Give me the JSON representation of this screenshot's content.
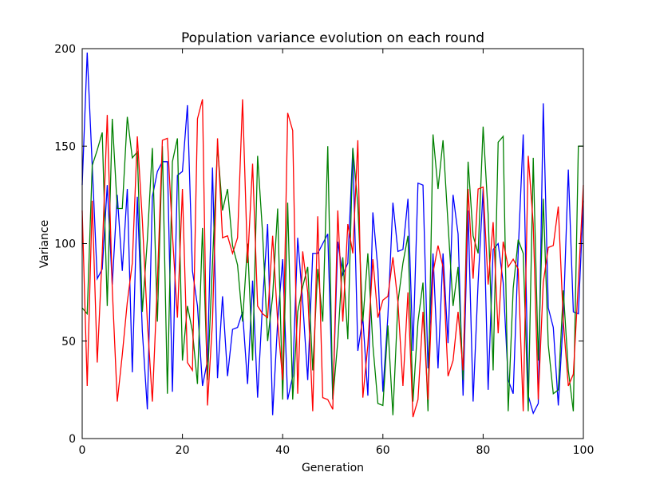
{
  "chart_data": {
    "type": "line",
    "title": "Population variance evolution on each round",
    "xlabel": "Generation",
    "ylabel": "Variance",
    "x": [
      0,
      1,
      2,
      3,
      4,
      5,
      6,
      7,
      8,
      9,
      10,
      11,
      12,
      13,
      14,
      15,
      16,
      17,
      18,
      19,
      20,
      21,
      22,
      23,
      24,
      25,
      26,
      27,
      28,
      29,
      30,
      31,
      32,
      33,
      34,
      35,
      36,
      37,
      38,
      39,
      40,
      41,
      42,
      43,
      44,
      45,
      46,
      47,
      48,
      49,
      50,
      51,
      52,
      53,
      54,
      55,
      56,
      57,
      58,
      59,
      60,
      61,
      62,
      63,
      64,
      65,
      66,
      67,
      68,
      69,
      70,
      71,
      72,
      73,
      74,
      75,
      76,
      77,
      78,
      79,
      80,
      81,
      82,
      83,
      84,
      85,
      86,
      87,
      88,
      89,
      90,
      91,
      92,
      93,
      94,
      95,
      96,
      97,
      98,
      99,
      100
    ],
    "series": [
      {
        "color": "#0000ff",
        "values": [
          130,
          198,
          140,
          82,
          87,
          130,
          79,
          125,
          86,
          128,
          34,
          124,
          55,
          15,
          124,
          137,
          142,
          142,
          24,
          135,
          137,
          171,
          86,
          68,
          27,
          40,
          139,
          31,
          73,
          32,
          56,
          57,
          65,
          28,
          81,
          21,
          70,
          110,
          12,
          60,
          92,
          20,
          32,
          103,
          70,
          30,
          95,
          95,
          100,
          105,
          20,
          101,
          84,
          90,
          149,
          45,
          62,
          22,
          116,
          87,
          24,
          63,
          121,
          96,
          97,
          123,
          45,
          131,
          130,
          36,
          95,
          36,
          95,
          49,
          125,
          105,
          22,
          117,
          19,
          80,
          128,
          25,
          97,
          100,
          80,
          30,
          23,
          96,
          156,
          22,
          13,
          18,
          172,
          67,
          57,
          17,
          62,
          138,
          65,
          64,
          122
        ]
      },
      {
        "color": "#008000",
        "values": [
          67,
          64,
          140,
          148,
          157,
          68,
          164,
          118,
          118,
          165,
          144,
          147,
          65,
          102,
          149,
          60,
          150,
          23,
          142,
          154,
          40,
          68,
          55,
          28,
          108,
          30,
          90,
          150,
          117,
          128,
          99,
          89,
          60,
          100,
          40,
          145,
          105,
          50,
          73,
          118,
          20,
          121,
          20,
          65,
          78,
          88,
          35,
          87,
          60,
          150,
          20,
          50,
          93,
          51,
          149,
          120,
          60,
          95,
          48,
          18,
          17,
          58,
          12,
          70,
          90,
          104,
          19,
          60,
          80,
          14,
          156,
          128,
          153,
          110,
          68,
          88,
          30,
          142,
          104,
          95,
          160,
          115,
          35,
          152,
          155,
          14,
          77,
          102,
          95,
          14,
          144,
          40,
          123,
          48,
          23,
          25,
          76,
          35,
          14,
          150,
          150
        ]
      },
      {
        "color": "#ff0000",
        "values": [
          117,
          27,
          122,
          39,
          95,
          166,
          77,
          19,
          43,
          70,
          90,
          155,
          112,
          60,
          19,
          80,
          153,
          154,
          105,
          62,
          128,
          39,
          35,
          164,
          174,
          17,
          60,
          154,
          103,
          104,
          95,
          103,
          174,
          90,
          141,
          68,
          64,
          62,
          104,
          60,
          30,
          167,
          158,
          23,
          96,
          75,
          14,
          114,
          21,
          20,
          15,
          117,
          60,
          110,
          95,
          153,
          21,
          48,
          92,
          62,
          71,
          73,
          93,
          70,
          27,
          75,
          11,
          20,
          65,
          20,
          85,
          99,
          88,
          32,
          40,
          65,
          35,
          128,
          82,
          128,
          129,
          79,
          111,
          54,
          101,
          88,
          92,
          87,
          14,
          145,
          110,
          20,
          80,
          98,
          99,
          119,
          60,
          27,
          33,
          80,
          130
        ]
      }
    ],
    "xlim": [
      0,
      100
    ],
    "ylim": [
      0,
      200
    ],
    "xticks": [
      0,
      20,
      40,
      60,
      80,
      100
    ],
    "yticks": [
      0,
      50,
      100,
      150,
      200
    ]
  }
}
